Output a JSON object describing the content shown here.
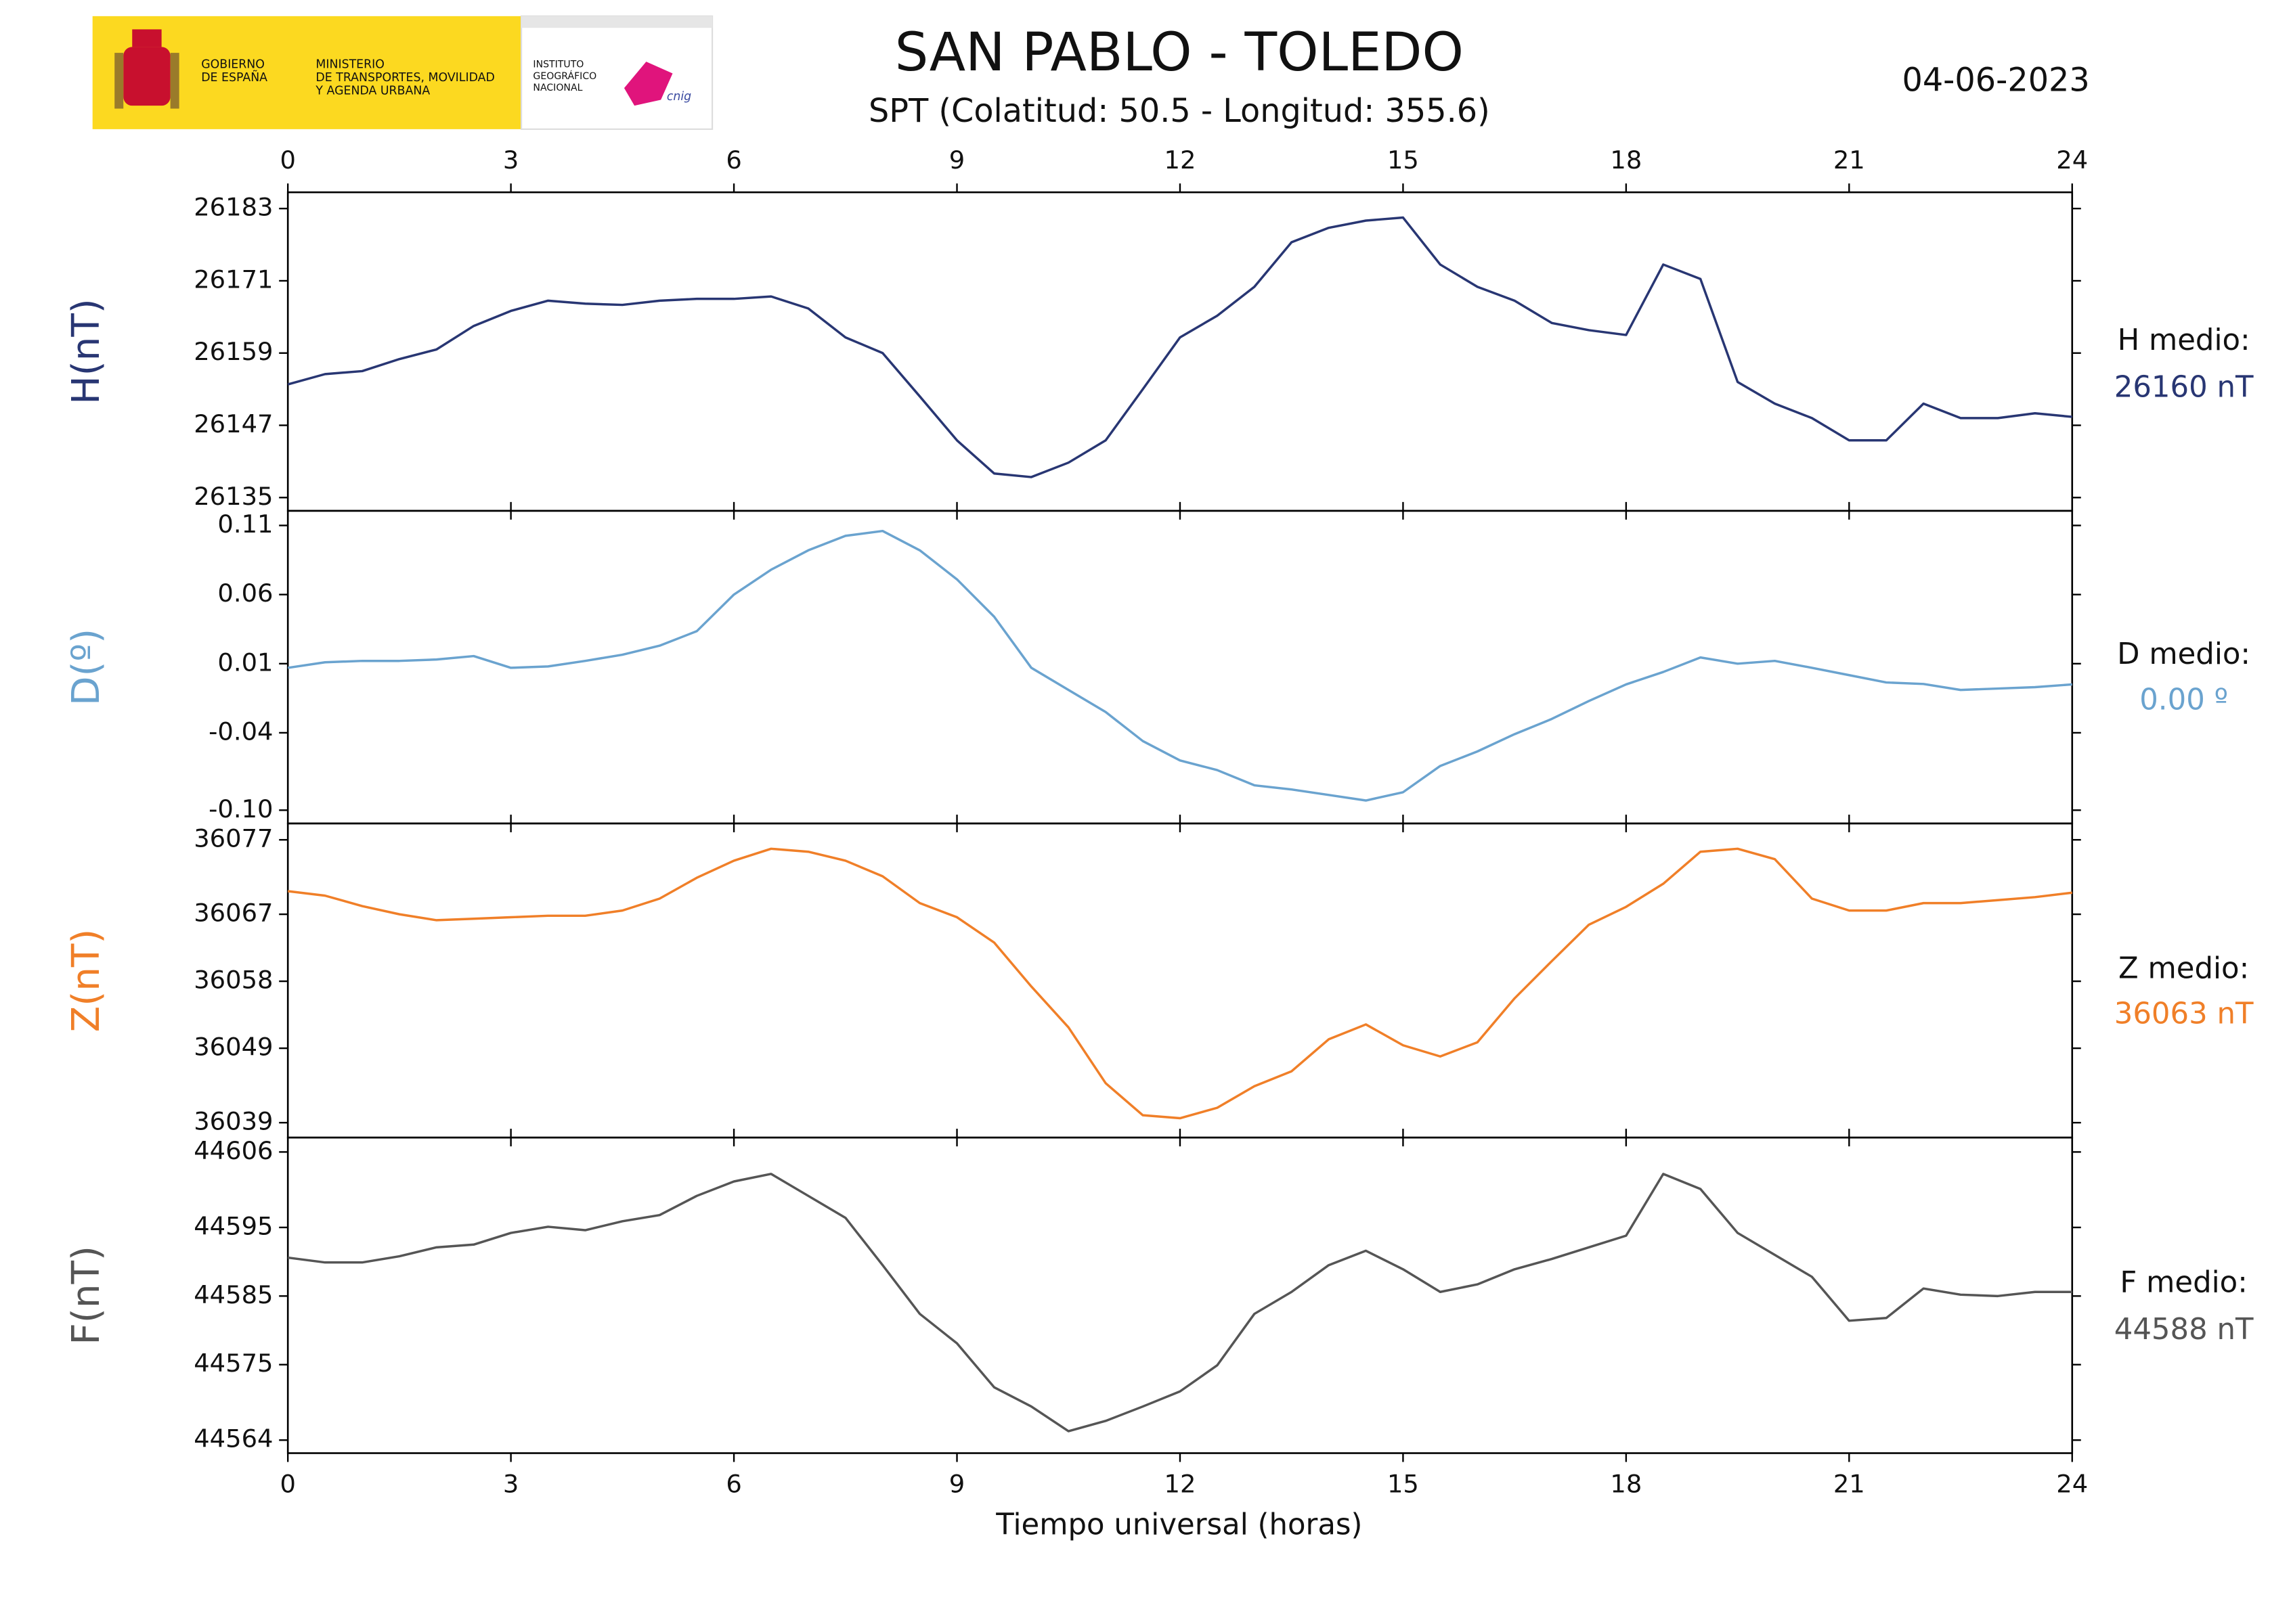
{
  "header": {
    "title": "SAN PABLO - TOLEDO",
    "subtitle": "SPT (Colatitud: 50.5 - Longitud: 355.6)",
    "date": "04-06-2023",
    "gobierno": [
      "GOBIERNO",
      "DE ESPAÑA"
    ],
    "ministerio": [
      "MINISTERIO",
      "DE TRANSPORTES, MOVILIDAD",
      "Y AGENDA URBANA"
    ],
    "instituto": [
      "INSTITUTO",
      "GEOGRÁFICO",
      "NACIONAL"
    ],
    "cnig": "cnig",
    "xlabel": "Tiempo universal (horas)"
  },
  "chart_data": [
    {
      "type": "line",
      "ylabel": "H(nT)",
      "color": "#283673",
      "annotation": "H medio:",
      "annotation_value": "26160 nT",
      "xlim": [
        0,
        24
      ],
      "xticks": [
        0,
        3,
        6,
        9,
        12,
        15,
        18,
        21,
        24
      ],
      "ylim": [
        26132.8,
        26185.7
      ],
      "yticks": [
        26183,
        26171,
        26159,
        26147,
        26135
      ],
      "x": [
        0,
        0.5,
        1,
        1.5,
        2,
        2.5,
        3,
        3.5,
        4,
        4.5,
        5,
        5.5,
        6,
        6.5,
        7,
        7.5,
        8,
        8.5,
        9,
        9.5,
        10,
        10.5,
        11,
        11.5,
        12,
        12.5,
        13,
        13.5,
        14,
        14.5,
        15,
        15.5,
        16,
        16.5,
        17,
        17.5,
        18,
        18.5,
        19,
        19.5,
        20,
        20.5,
        21,
        21.5,
        22,
        22.5,
        23,
        23.5,
        24
      ],
      "values": [
        26153.8,
        26155.5,
        26156,
        26158,
        26159.6,
        26163.5,
        26166,
        26167.7,
        26167.2,
        26167,
        26167.7,
        26168,
        26168,
        26168.4,
        26166.4,
        26161.6,
        26159,
        26151.8,
        26144.5,
        26139,
        26138.4,
        26140.8,
        26144.5,
        26153,
        26161.6,
        26165.2,
        26170,
        26177.4,
        26179.8,
        26181,
        26181.5,
        26173.7,
        26170,
        26167.7,
        26164,
        26162.8,
        26162,
        26173.7,
        26171.3,
        26154.2,
        26150.6,
        26148.2,
        26144.5,
        26144.5,
        26150.6,
        26148.2,
        26148.2,
        26149,
        26148.4
      ]
    },
    {
      "type": "line",
      "ylabel": "D(º)",
      "color": "#6aa3cf",
      "annotation": "D medio:",
      "annotation_value": "0.00 º",
      "xlim": [
        0,
        24
      ],
      "xticks": [
        0,
        3,
        6,
        9,
        12,
        15,
        18,
        21,
        24
      ],
      "ylim": [
        -0.1056,
        0.1206
      ],
      "yticks": [
        0.11,
        0.06,
        0.01,
        -0.04,
        {
          "value": -0.096,
          "label": "-0.10"
        }
      ],
      "x": [
        0,
        0.5,
        1,
        1.5,
        2,
        2.5,
        3,
        3.5,
        4,
        4.5,
        5,
        5.5,
        6,
        6.5,
        7,
        7.5,
        8,
        8.5,
        9,
        9.5,
        10,
        10.5,
        11,
        11.5,
        12,
        12.5,
        13,
        13.5,
        14,
        14.5,
        15,
        15.5,
        16,
        16.5,
        17,
        17.5,
        18,
        18.5,
        19,
        19.5,
        20,
        20.5,
        21,
        21.5,
        22,
        22.5,
        23,
        23.5,
        24
      ],
      "values": [
        0.007,
        0.011,
        0.012,
        0.012,
        0.013,
        0.0155,
        0.007,
        0.008,
        0.012,
        0.0165,
        0.023,
        0.0335,
        0.06,
        0.078,
        0.092,
        0.1025,
        0.106,
        0.092,
        0.071,
        0.044,
        0.007,
        -0.009,
        -0.025,
        -0.046,
        -0.06,
        -0.067,
        -0.078,
        -0.081,
        -0.085,
        -0.089,
        -0.083,
        -0.064,
        -0.0535,
        -0.041,
        -0.03,
        -0.017,
        -0.005,
        0.004,
        0.0145,
        0.01,
        0.012,
        0.007,
        0.0017,
        -0.0036,
        -0.0047,
        -0.009,
        -0.008,
        -0.007,
        -0.005
      ]
    },
    {
      "type": "line",
      "ylabel": "Z(nT)",
      "color": "#f07f28",
      "annotation": "Z medio:",
      "annotation_value": "36063 nT",
      "xlim": [
        0,
        24
      ],
      "xticks": [
        0,
        3,
        6,
        9,
        12,
        15,
        18,
        21,
        24
      ],
      "ylim": [
        36037.0,
        36079.2
      ],
      "yticks": [
        36077,
        36067,
        36058,
        36049,
        36039
      ],
      "x": [
        0,
        0.5,
        1,
        1.5,
        2,
        2.5,
        3,
        3.5,
        4,
        4.5,
        5,
        5.5,
        6,
        6.5,
        7,
        7.5,
        8,
        8.5,
        9,
        9.5,
        10,
        10.5,
        11,
        11.5,
        12,
        12.5,
        13,
        13.5,
        14,
        14.5,
        15,
        15.5,
        16,
        16.5,
        17,
        17.5,
        18,
        18.5,
        19,
        19.5,
        20,
        20.5,
        21,
        21.5,
        22,
        22.5,
        23,
        23.5,
        24
      ],
      "values": [
        36070.1,
        36069.5,
        36068.1,
        36067,
        36066.2,
        36066.4,
        36066.6,
        36066.8,
        36066.8,
        36067.5,
        36069.1,
        36071.9,
        36074.2,
        36075.8,
        36075.4,
        36074.2,
        36072.1,
        36068.5,
        36066.6,
        36063.2,
        36057.3,
        36051.8,
        36044.3,
        36040,
        36039.6,
        36041,
        36043.9,
        36045.9,
        36050.2,
        36052.2,
        36049.4,
        36047.9,
        36049.8,
        36055.7,
        36060.7,
        36065.6,
        36068,
        36071.1,
        36075.4,
        36075.8,
        36074.4,
        36069.1,
        36067.5,
        36067.5,
        36068.5,
        36068.5,
        36068.9,
        36069.3,
        36069.9
      ]
    },
    {
      "type": "line",
      "ylabel": "F(nT)",
      "color": "#555555",
      "annotation": "F medio:",
      "annotation_value": "44588 nT",
      "xlim": [
        0,
        24
      ],
      "xticks": [
        0,
        3,
        6,
        9,
        12,
        15,
        18,
        21,
        24
      ],
      "ylim": [
        44562.1,
        44608.1
      ],
      "yticks": [
        44606,
        44595,
        44585,
        44575,
        44564
      ],
      "x": [
        0,
        0.5,
        1,
        1.5,
        2,
        2.5,
        3,
        3.5,
        4,
        4.5,
        5,
        5.5,
        6,
        6.5,
        7,
        7.5,
        8,
        8.5,
        9,
        9.5,
        10,
        10.5,
        11,
        11.5,
        12,
        12.5,
        13,
        13.5,
        14,
        14.5,
        15,
        15.5,
        16,
        16.5,
        17,
        17.5,
        18,
        18.5,
        19,
        19.5,
        20,
        20.5,
        21,
        21.5,
        22,
        22.5,
        23,
        23.5,
        24
      ],
      "values": [
        44590.6,
        44589.9,
        44589.9,
        44590.8,
        44592.1,
        44592.5,
        44594.2,
        44595.1,
        44594.6,
        44595.9,
        44596.8,
        44599.6,
        44601.7,
        44602.8,
        44599.6,
        44596.4,
        44589.5,
        44582.4,
        44578.1,
        44571.7,
        44568.9,
        44565.3,
        44566.8,
        44568.9,
        44571.1,
        44574.9,
        44582.4,
        44585.6,
        44589.5,
        44591.6,
        44588.9,
        44585.6,
        44586.7,
        44588.9,
        44590.4,
        44592.1,
        44593.8,
        44602.8,
        44600.6,
        44594.2,
        44591,
        44587.8,
        44581.4,
        44581.8,
        44586.1,
        44585.2,
        44585,
        44585.6,
        44585.6
      ]
    }
  ]
}
